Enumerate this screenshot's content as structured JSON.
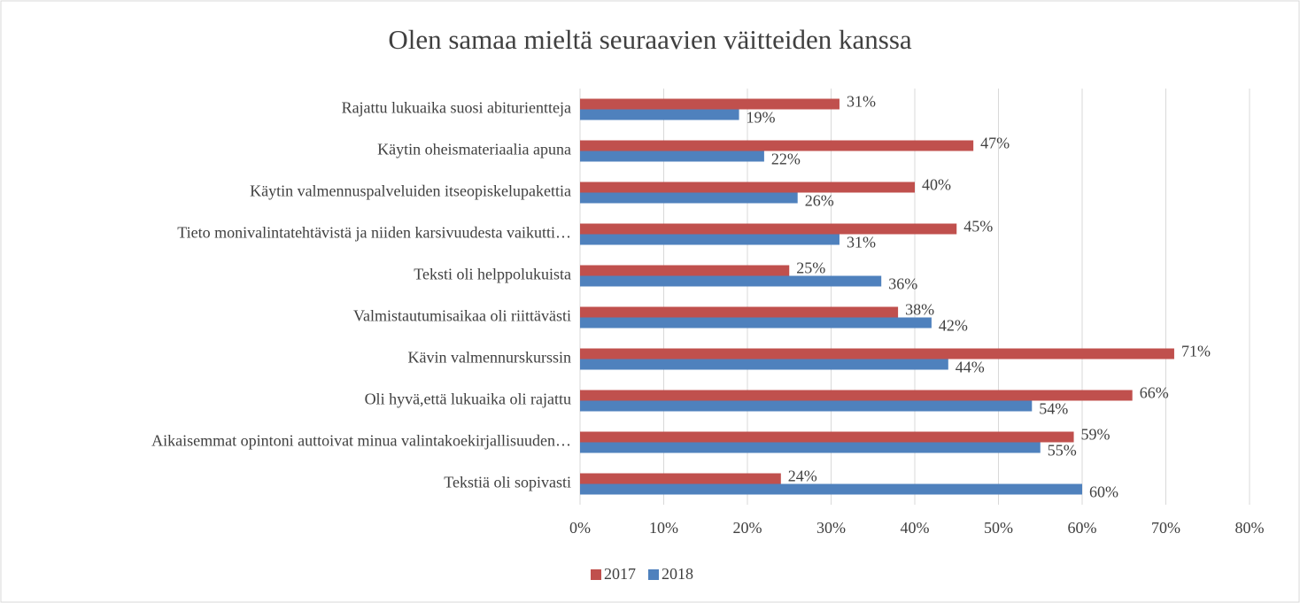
{
  "chart_data": {
    "type": "barh",
    "title": "Olen samaa mieltä seuraavien väitteiden kanssa",
    "categories": [
      "Rajattu lukuaika suosi abiturientteja",
      "Käytin oheismateriaalia apuna",
      "Käytin valmennuspalveluiden itseopiskelupakettia",
      "Tieto monivalintatehtävistä ja niiden karsivuudesta vaikutti…",
      "Teksti oli helppolukuista",
      "Valmistautumisaikaa oli riittävästi",
      "Kävin valmennurskurssin",
      "Oli hyvä,että lukuaika oli rajattu",
      "Aikaisemmat opintoni auttoivat minua valintakoekirjallisuuden…",
      "Tekstiä oli sopivasti"
    ],
    "series": [
      {
        "name": "2017",
        "color": "#c0504d",
        "values": [
          31,
          47,
          40,
          45,
          25,
          38,
          71,
          66,
          59,
          24
        ],
        "value_labels": [
          "31%",
          "47%",
          "40%",
          "45%",
          "25%",
          "38%",
          "71%",
          "66%",
          "59%",
          "24%"
        ]
      },
      {
        "name": "2018",
        "color": "#4f81bd",
        "values": [
          19,
          22,
          26,
          31,
          36,
          42,
          44,
          54,
          55,
          60
        ],
        "value_labels": [
          "19%",
          "22%",
          "26%",
          "31%",
          "36%",
          "42%",
          "44%",
          "54%",
          "55%",
          "60%"
        ]
      }
    ],
    "xlim": [
      0,
      80
    ],
    "xticks": [
      {
        "value": 0,
        "label": "0%"
      },
      {
        "value": 10,
        "label": "10%"
      },
      {
        "value": 20,
        "label": "20%"
      },
      {
        "value": 30,
        "label": "30%"
      },
      {
        "value": 40,
        "label": "40%"
      },
      {
        "value": 50,
        "label": "50%"
      },
      {
        "value": 60,
        "label": "60%"
      },
      {
        "value": 70,
        "label": "70%"
      },
      {
        "value": 80,
        "label": "80%"
      }
    ],
    "grid": true,
    "legend": "bottom"
  }
}
